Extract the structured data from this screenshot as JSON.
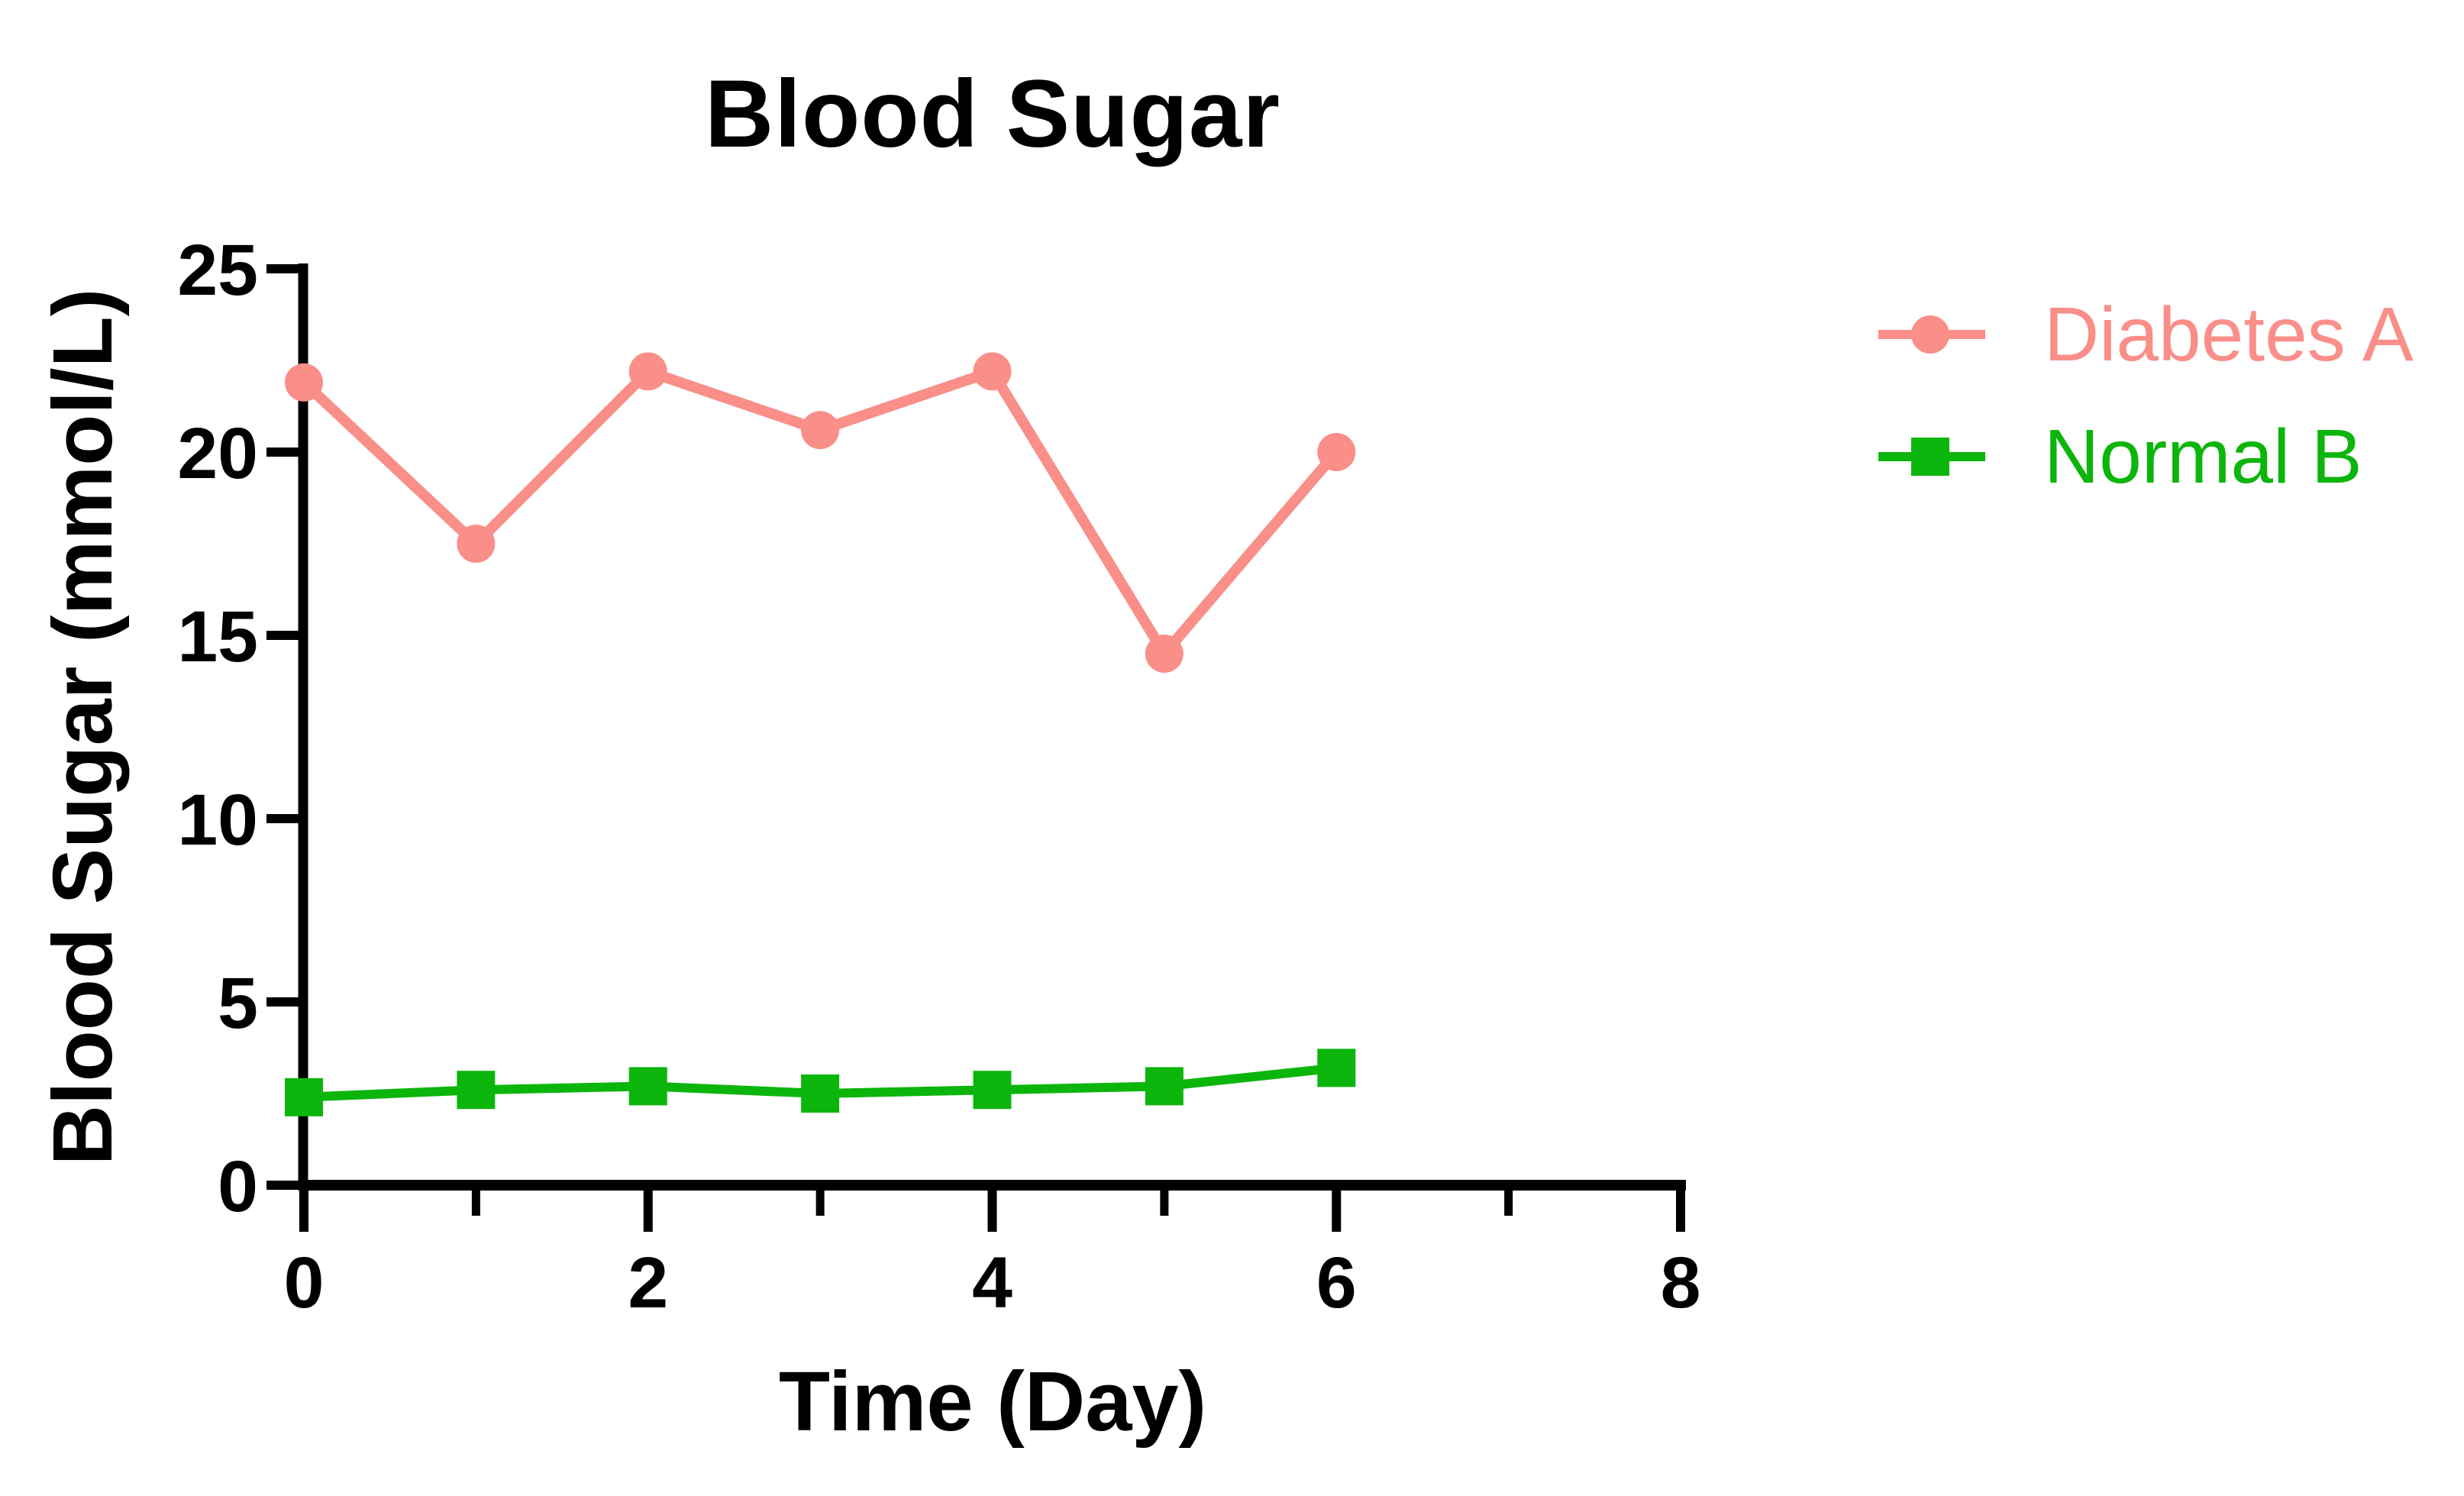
{
  "title": "Blood Sugar",
  "chart_data": {
    "type": "line",
    "title": "Blood Sugar",
    "xlabel": "Time (Day)",
    "ylabel": "Blood Sugar (mmol/L)",
    "xlim": [
      0,
      8
    ],
    "ylim": [
      0,
      25
    ],
    "x_major_ticks": [
      0,
      2,
      4,
      6,
      8
    ],
    "x_minor_ticks": [
      1,
      3,
      5,
      7
    ],
    "y_ticks": [
      0,
      5,
      10,
      15,
      20,
      25
    ],
    "grid": false,
    "legend_position": "right",
    "axis_color": "#000000",
    "x": [
      0,
      1,
      2,
      3,
      4,
      5,
      6
    ],
    "series": [
      {
        "name": "Diabetes A",
        "color": "#FA8E89",
        "marker": "circle",
        "line_width": 14,
        "values": [
          21.9,
          17.5,
          22.2,
          20.6,
          22.2,
          14.5,
          20.0
        ]
      },
      {
        "name": "Normal B",
        "color": "#0CB50C",
        "marker": "square",
        "line_width": 12,
        "values": [
          2.4,
          2.6,
          2.7,
          2.5,
          2.6,
          2.7,
          3.2
        ]
      }
    ]
  },
  "legend": {
    "items": [
      {
        "label": "Diabetes A"
      },
      {
        "label": "Normal B"
      }
    ]
  }
}
